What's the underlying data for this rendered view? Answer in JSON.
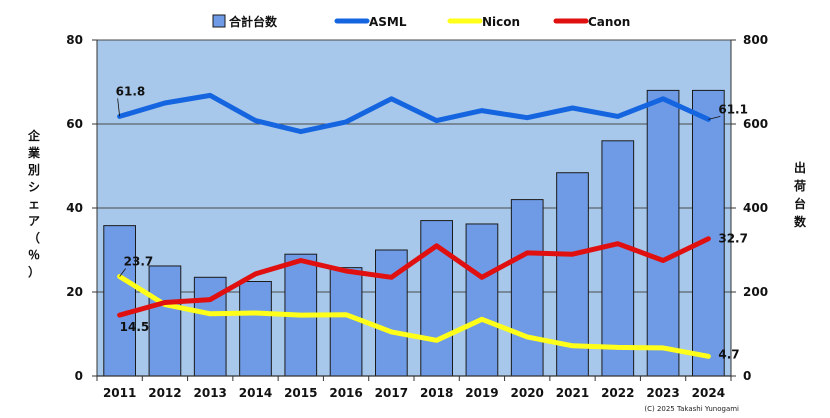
{
  "chart_data": {
    "type": "bar+line",
    "categories": [
      "2011",
      "2012",
      "2013",
      "2014",
      "2015",
      "2016",
      "2017",
      "2018",
      "2019",
      "2020",
      "2021",
      "2022",
      "2023",
      "2024"
    ],
    "bars": {
      "name": "合計台数",
      "axis": "right",
      "color": "#6f9be6",
      "values": [
        358,
        262,
        235,
        225,
        290,
        258,
        300,
        370,
        362,
        420,
        484,
        560,
        680,
        680
      ]
    },
    "series": [
      {
        "name": "ASML",
        "color": "#1565e0",
        "values": [
          61.8,
          65.0,
          66.8,
          60.8,
          58.2,
          60.5,
          66.0,
          60.8,
          63.2,
          61.5,
          63.8,
          61.8,
          66.0,
          61.1
        ]
      },
      {
        "name": "Nicon",
        "color": "#ffff1a",
        "values": [
          23.7,
          17.0,
          14.8,
          15.0,
          14.5,
          14.6,
          10.5,
          8.5,
          13.5,
          9.3,
          7.2,
          6.8,
          6.7,
          4.7
        ]
      },
      {
        "name": "Canon",
        "color": "#e01010",
        "values": [
          14.5,
          17.5,
          18.2,
          24.3,
          27.5,
          25.0,
          23.5,
          31.0,
          23.5,
          29.3,
          29.0,
          31.5,
          27.5,
          32.7
        ]
      }
    ],
    "annotations": [
      {
        "series": "ASML",
        "category": "2011",
        "text": "61.8"
      },
      {
        "series": "ASML",
        "category": "2024",
        "text": "61.1"
      },
      {
        "series": "Nicon",
        "category": "2011",
        "text": "23.7"
      },
      {
        "series": "Nicon",
        "category": "2024",
        "text": "4.7"
      },
      {
        "series": "Canon",
        "category": "2011",
        "text": "14.5"
      },
      {
        "series": "Canon",
        "category": "2024",
        "text": "32.7"
      }
    ],
    "ylabel_left": "企業別シェア（％）",
    "ylabel_right": "出荷台数",
    "ylim_left": [
      0,
      80
    ],
    "yticks_left": [
      "0",
      "20",
      "40",
      "60",
      "80"
    ],
    "ylim_right": [
      0,
      800
    ],
    "yticks_right": [
      "0",
      "200",
      "400",
      "600",
      "800"
    ],
    "legend": "top",
    "grid": "horizontal",
    "plot_background": "#a7c8ea",
    "credit": "(C) 2025 Takashi Yunogami"
  }
}
